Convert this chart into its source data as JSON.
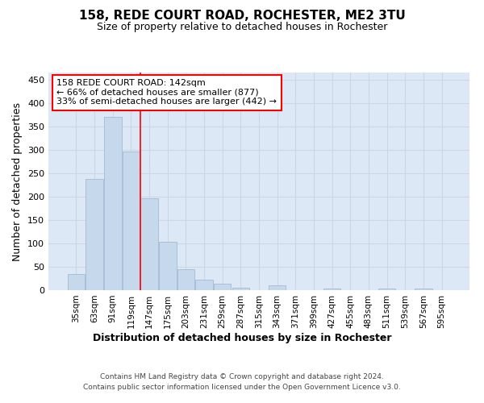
{
  "title": "158, REDE COURT ROAD, ROCHESTER, ME2 3TU",
  "subtitle": "Size of property relative to detached houses in Rochester",
  "xlabel_bottom": "Distribution of detached houses by size in Rochester",
  "ylabel": "Number of detached properties",
  "bar_color": "#c5d8ec",
  "bar_edgecolor": "#a8c0d8",
  "grid_color": "#ccd6e4",
  "background_color": "#dce8f5",
  "categories": [
    "35sqm",
    "63sqm",
    "91sqm",
    "119sqm",
    "147sqm",
    "175sqm",
    "203sqm",
    "231sqm",
    "259sqm",
    "287sqm",
    "315sqm",
    "343sqm",
    "371sqm",
    "399sqm",
    "427sqm",
    "455sqm",
    "483sqm",
    "511sqm",
    "539sqm",
    "567sqm",
    "595sqm"
  ],
  "values": [
    35,
    237,
    370,
    297,
    197,
    103,
    45,
    22,
    14,
    5,
    0,
    10,
    0,
    0,
    3,
    0,
    0,
    3,
    0,
    3,
    0
  ],
  "ylim": [
    0,
    465
  ],
  "yticks": [
    0,
    50,
    100,
    150,
    200,
    250,
    300,
    350,
    400,
    450
  ],
  "annotation_text": "158 REDE COURT ROAD: 142sqm\n← 66% of detached houses are smaller (877)\n33% of semi-detached houses are larger (442) →",
  "annotation_box_color": "white",
  "annotation_box_edgecolor": "red",
  "vline_color": "red",
  "footer_line1": "Contains HM Land Registry data © Crown copyright and database right 2024.",
  "footer_line2": "Contains public sector information licensed under the Open Government Licence v3.0."
}
